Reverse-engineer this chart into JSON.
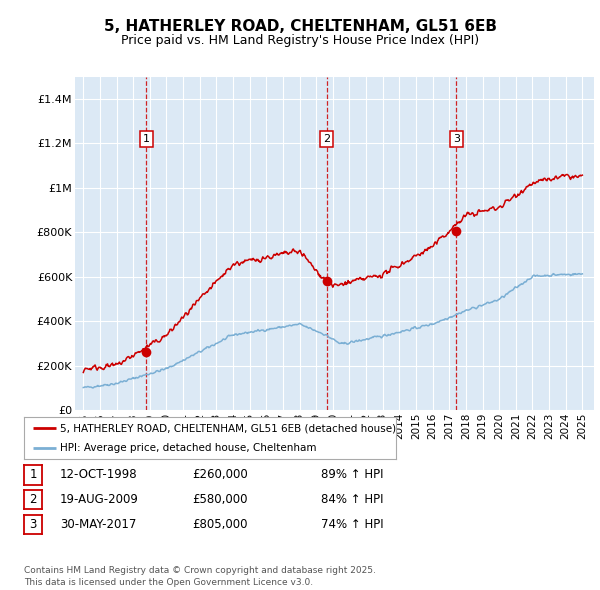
{
  "title": "5, HATHERLEY ROAD, CHELTENHAM, GL51 6EB",
  "subtitle": "Price paid vs. HM Land Registry's House Price Index (HPI)",
  "background_color": "#dce9f5",
  "red_line_color": "#cc0000",
  "blue_line_color": "#7bafd4",
  "sale_marker_color": "#cc0000",
  "vline_color": "#cc0000",
  "ylim": [
    0,
    1500000
  ],
  "xlim_start": 1994.5,
  "xlim_end": 2025.7,
  "sales": [
    {
      "num": 1,
      "year": 1998.79,
      "price": 260000,
      "label": "1",
      "date": "12-OCT-1998",
      "pct": "89%"
    },
    {
      "num": 2,
      "year": 2009.63,
      "price": 580000,
      "label": "2",
      "date": "19-AUG-2009",
      "pct": "84%"
    },
    {
      "num": 3,
      "year": 2017.42,
      "price": 805000,
      "label": "3",
      "date": "30-MAY-2017",
      "pct": "74%"
    }
  ],
  "legend_entries": [
    "5, HATHERLEY ROAD, CHELTENHAM, GL51 6EB (detached house)",
    "HPI: Average price, detached house, Cheltenham"
  ],
  "footer": "Contains HM Land Registry data © Crown copyright and database right 2025.\nThis data is licensed under the Open Government Licence v3.0.",
  "yticks": [
    0,
    200000,
    400000,
    600000,
    800000,
    1000000,
    1200000,
    1400000
  ],
  "ytick_labels": [
    "£0",
    "£200K",
    "£400K",
    "£600K",
    "£800K",
    "£1M",
    "£1.2M",
    "£1.4M"
  ],
  "xticks": [
    1995,
    1996,
    1997,
    1998,
    1999,
    2000,
    2001,
    2002,
    2003,
    2004,
    2005,
    2006,
    2007,
    2008,
    2009,
    2010,
    2011,
    2012,
    2013,
    2014,
    2015,
    2016,
    2017,
    2018,
    2019,
    2020,
    2021,
    2022,
    2023,
    2024,
    2025
  ]
}
